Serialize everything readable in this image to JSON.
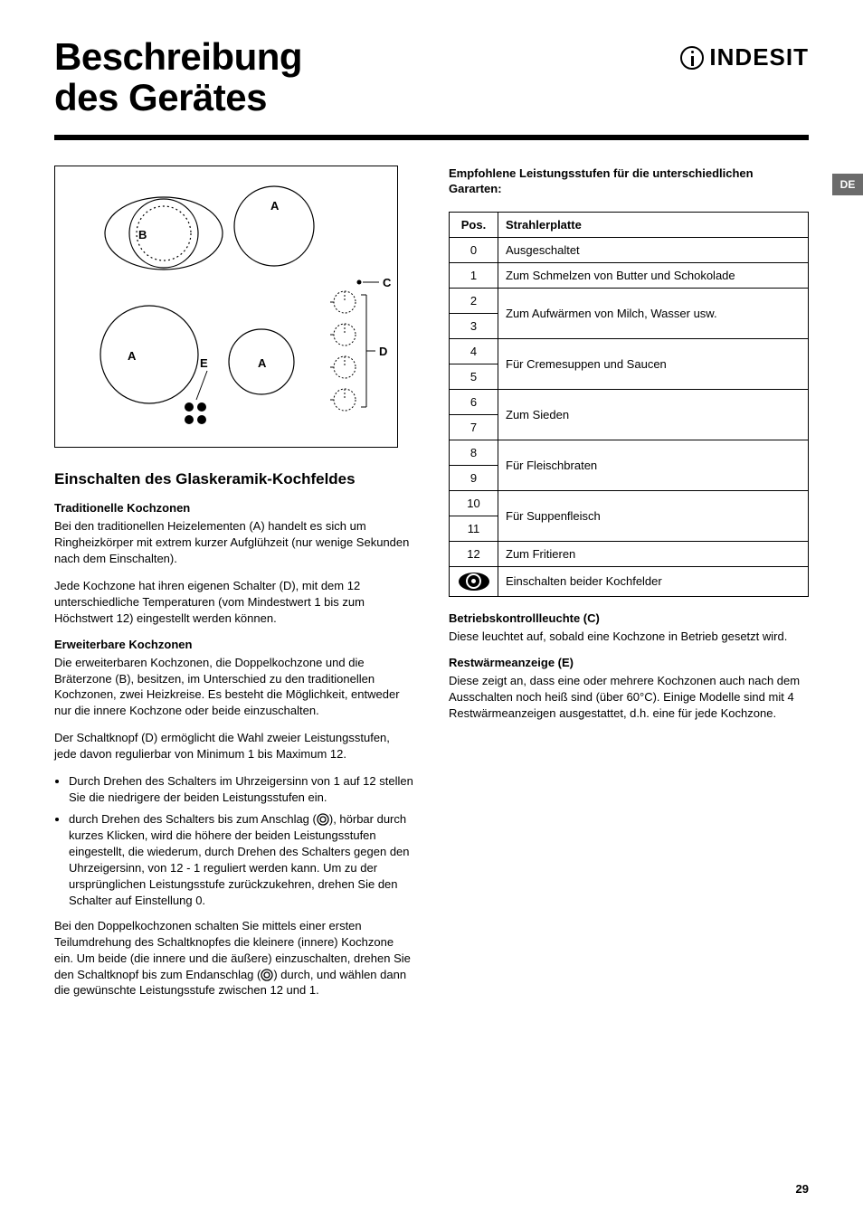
{
  "brand": "INDESIT",
  "language_tab": "DE",
  "page_number": "29",
  "title_line1": "Beschreibung",
  "title_line2": "des Gerätes",
  "diagram": {
    "labels": {
      "A": "A",
      "B": "B",
      "C": "C",
      "D": "D",
      "E": "E"
    },
    "colors": {
      "stroke": "#000000",
      "dash": "#000000",
      "bg": "#ffffff"
    }
  },
  "left": {
    "h2": "Einschalten des Glaskeramik-Kochfeldes",
    "sec1_h": "Traditionelle Kochzonen",
    "sec1_p1": "Bei den traditionellen Heizelementen (A) handelt es sich um Ringheizkörper mit extrem kurzer Aufglühzeit (nur wenige Sekunden nach dem Einschalten).",
    "sec1_p2": "Jede Kochzone hat ihren eigenen Schalter (D), mit dem 12 unterschiedliche Temperaturen (vom Mindestwert 1 bis zum Höchstwert 12) eingestellt werden können.",
    "sec2_h": "Erweiterbare Kochzonen",
    "sec2_p1": "Die erweiterbaren Kochzonen, die Doppelkochzone und die Bräterzone (B), besitzen, im Unterschied zu den traditionellen Kochzonen, zwei Heizkreise. Es besteht die Möglichkeit, entweder nur die innere Kochzone oder beide einzuschalten.",
    "sec2_p2": "Der Schaltknopf (D) ermöglicht die Wahl zweier Leistungsstufen, jede davon regulierbar von Minimum 1 bis Maximum 12.",
    "sec2_li1": "Durch Drehen des Schalters im Uhrzeigersinn von 1 auf 12 stellen Sie die niedrigere der beiden Leistungsstufen ein.",
    "sec2_li2a": "durch Drehen des Schalters bis zum Anschlag (",
    "sec2_li2b": "), hörbar durch kurzes Klicken, wird die höhere der beiden Leistungsstufen eingestellt, die wiederum, durch Drehen des Schalters gegen den Uhrzeigersinn, von 12 - 1 reguliert werden kann. Um zu der ursprünglichen Leistungsstufe zurückzukehren, drehen Sie den Schalter auf Einstellung 0.",
    "sec2_p3a": "Bei den Doppelkochzonen schalten Sie mittels einer ersten Teilumdrehung des Schaltknopfes die kleinere (innere) Kochzone ein. Um beide (die innere und die äußere) einzuschalten, drehen Sie den Schaltknopf bis zum Endanschlag (",
    "sec2_p3b": ") durch, und wählen dann die gewünschte Leistungsstufe zwischen 12 und 1."
  },
  "right": {
    "heading": "Empfohlene Leistungsstufen für die unterschiedlichen Gararten:",
    "th_pos": "Pos.",
    "th_desc": "Strahlerplatte",
    "rows": [
      {
        "pos": "0",
        "desc": "Ausgeschaltet",
        "span": 1
      },
      {
        "pos": "1",
        "desc": "Zum Schmelzen von Butter und Schokolade",
        "span": 1
      },
      {
        "pos": "2",
        "desc": "Zum Aufwärmen von Milch, Wasser usw.",
        "span": 2
      },
      {
        "pos": "3"
      },
      {
        "pos": "4",
        "desc": "Für Cremesuppen und Saucen",
        "span": 2
      },
      {
        "pos": "5"
      },
      {
        "pos": "6",
        "desc": "Zum Sieden",
        "span": 2
      },
      {
        "pos": "7"
      },
      {
        "pos": "8",
        "desc": "Für Fleischbraten",
        "span": 2
      },
      {
        "pos": "9"
      },
      {
        "pos": "10",
        "desc": "Für Suppenfleisch",
        "span": 2
      },
      {
        "pos": "11"
      },
      {
        "pos": "12",
        "desc": "Zum Fritieren",
        "span": 1
      },
      {
        "pos": "icon",
        "desc": "Einschalten beider Kochfelder",
        "span": 1
      }
    ],
    "sec3_h": "Betriebskontrollleuchte (C)",
    "sec3_p": "Diese leuchtet auf, sobald eine Kochzone in Betrieb gesetzt wird.",
    "sec4_h": "Restwärmeanzeige (E)",
    "sec4_p": "Diese zeigt an, dass eine oder mehrere Kochzonen auch nach dem Ausschalten noch heiß sind (über 60°C). Einige Modelle sind mit 4 Restwärmeanzeigen ausgestattet, d.h. eine für jede Kochzone."
  }
}
